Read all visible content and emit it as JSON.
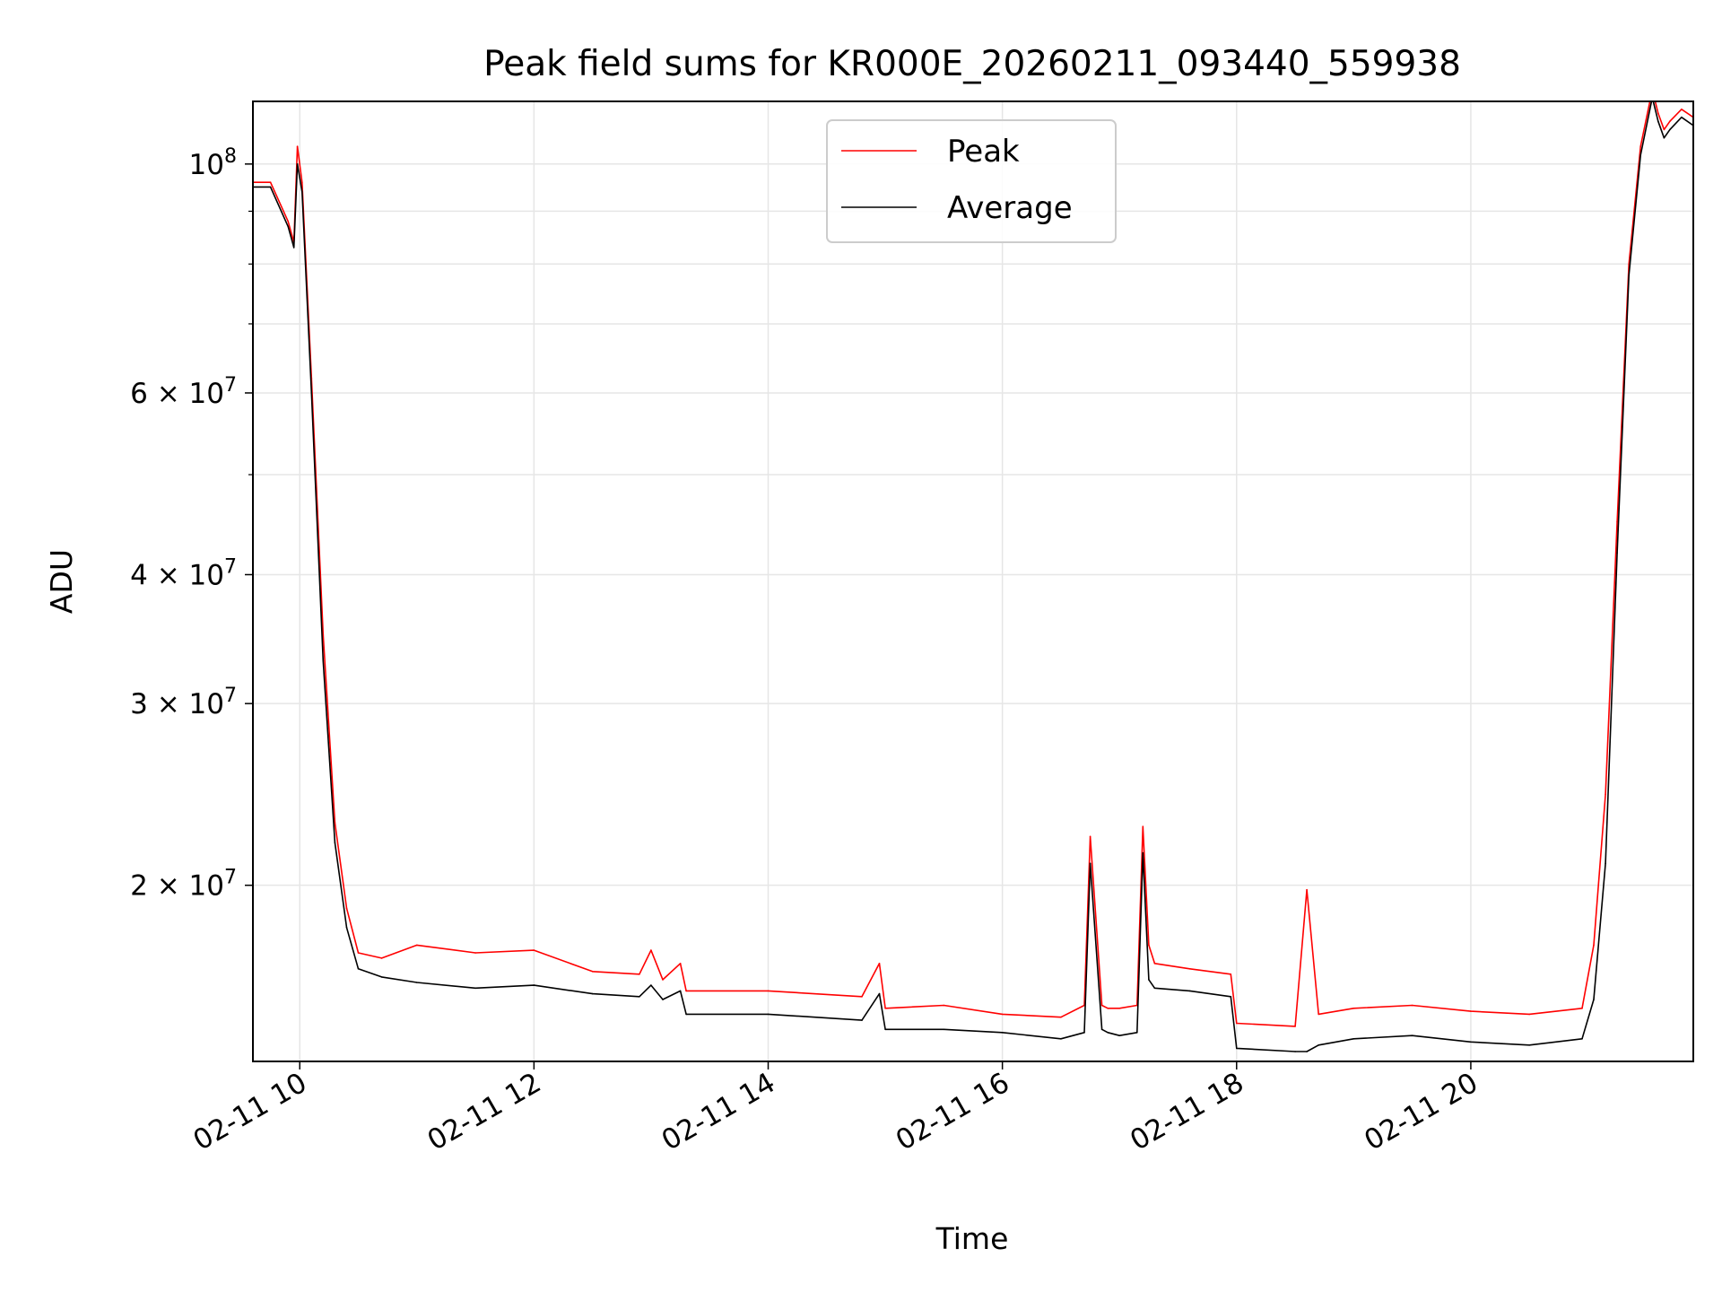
{
  "chart_data": {
    "type": "line",
    "title": "Peak field sums for KR000E_20260211_093440_559938",
    "xlabel": "Time",
    "ylabel": "ADU",
    "yscale": "log",
    "grid": true,
    "legend_position": "upper-center",
    "x_unit": "hours since 02-11 00:00",
    "xlim": [
      9.6,
      21.9
    ],
    "ylim": [
      13500000,
      115000000
    ],
    "x_ticks": [
      {
        "value": 10,
        "label": "02-11 10"
      },
      {
        "value": 12,
        "label": "02-11 12"
      },
      {
        "value": 14,
        "label": "02-11 14"
      },
      {
        "value": 16,
        "label": "02-11 16"
      },
      {
        "value": 18,
        "label": "02-11 18"
      },
      {
        "value": 20,
        "label": "02-11 20"
      }
    ],
    "y_ticks": [
      {
        "value": 100000000,
        "label": "10",
        "exp": "8",
        "mant": ""
      },
      {
        "value": 60000000,
        "label": "6 × 10",
        "exp": "7",
        "mant": "6"
      },
      {
        "value": 40000000,
        "label": "4 × 10",
        "exp": "7",
        "mant": "4"
      },
      {
        "value": 30000000,
        "label": "3 × 10",
        "exp": "7",
        "mant": "3"
      },
      {
        "value": 20000000,
        "label": "2 × 10",
        "exp": "7",
        "mant": "2"
      }
    ],
    "y_minor_gridlines": [
      90000000,
      80000000,
      70000000,
      50000000
    ],
    "series": [
      {
        "name": "Peak",
        "color": "#ff0000",
        "x": [
          9.6,
          9.75,
          9.9,
          9.95,
          9.98,
          10.02,
          10.1,
          10.2,
          10.3,
          10.4,
          10.5,
          10.7,
          11.0,
          11.5,
          12.0,
          12.5,
          12.9,
          13.0,
          13.1,
          13.25,
          13.3,
          14.0,
          14.8,
          14.95,
          15.0,
          15.5,
          16.0,
          16.5,
          16.7,
          16.75,
          16.85,
          16.9,
          17.0,
          17.15,
          17.2,
          17.25,
          17.3,
          17.6,
          17.95,
          18.0,
          18.5,
          18.6,
          18.7,
          19.0,
          19.5,
          20.0,
          20.5,
          20.95,
          21.05,
          21.15,
          21.25,
          21.35,
          21.45,
          21.55,
          21.6,
          21.65,
          21.7,
          21.8,
          21.9
        ],
        "y": [
          96000000,
          96000000,
          88000000,
          84000000,
          104000000,
          96000000,
          62000000,
          35000000,
          23000000,
          19000000,
          17200000,
          17000000,
          17500000,
          17200000,
          17300000,
          16500000,
          16400000,
          17300000,
          16200000,
          16800000,
          15800000,
          15800000,
          15600000,
          16800000,
          15200000,
          15300000,
          15000000,
          14900000,
          15300000,
          22300000,
          15300000,
          15200000,
          15200000,
          15300000,
          22800000,
          17500000,
          16800000,
          16600000,
          16400000,
          14700000,
          14600000,
          19800000,
          15000000,
          15200000,
          15300000,
          15100000,
          15000000,
          15200000,
          17500000,
          24500000,
          45000000,
          80000000,
          104000000,
          118000000,
          112000000,
          108000000,
          110000000,
          113000000,
          111000000
        ]
      },
      {
        "name": "Average",
        "color": "#000000",
        "x": [
          9.6,
          9.75,
          9.9,
          9.95,
          9.98,
          10.02,
          10.1,
          10.2,
          10.3,
          10.4,
          10.5,
          10.7,
          11.0,
          11.5,
          12.0,
          12.5,
          12.9,
          13.0,
          13.1,
          13.25,
          13.3,
          14.0,
          14.8,
          14.95,
          15.0,
          15.5,
          16.0,
          16.5,
          16.7,
          16.75,
          16.85,
          16.9,
          17.0,
          17.15,
          17.2,
          17.25,
          17.3,
          17.6,
          17.95,
          18.0,
          18.5,
          18.6,
          18.7,
          19.0,
          19.5,
          20.0,
          20.5,
          20.95,
          21.05,
          21.15,
          21.25,
          21.35,
          21.45,
          21.55,
          21.6,
          21.65,
          21.7,
          21.8,
          21.9
        ],
        "y": [
          95000000,
          95000000,
          87000000,
          83000000,
          100000000,
          94000000,
          60000000,
          33000000,
          22000000,
          18200000,
          16600000,
          16300000,
          16100000,
          15900000,
          16000000,
          15700000,
          15600000,
          16000000,
          15500000,
          15800000,
          15000000,
          15000000,
          14800000,
          15700000,
          14500000,
          14500000,
          14400000,
          14200000,
          14400000,
          21000000,
          14500000,
          14400000,
          14300000,
          14400000,
          21500000,
          16200000,
          15900000,
          15800000,
          15600000,
          13900000,
          13800000,
          13800000,
          14000000,
          14200000,
          14300000,
          14100000,
          14000000,
          14200000,
          15500000,
          21000000,
          42000000,
          78000000,
          102000000,
          116000000,
          110000000,
          106000000,
          108000000,
          111000000,
          109000000
        ]
      }
    ]
  }
}
